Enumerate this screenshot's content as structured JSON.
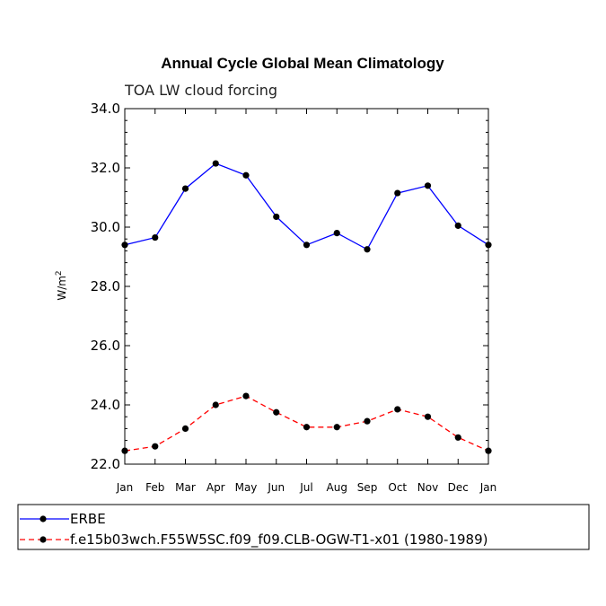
{
  "chart_data": {
    "type": "line",
    "title": "Annual Cycle Global Mean Climatology",
    "subtitle": "TOA LW cloud forcing",
    "xlabel": "",
    "ylabel": "W/m",
    "ylabel_superscript": "2",
    "ylim": [
      22.0,
      34.0
    ],
    "yticks": [
      "22.0",
      "24.0",
      "26.0",
      "28.0",
      "30.0",
      "32.0",
      "34.0"
    ],
    "categories": [
      "Jan",
      "Feb",
      "Mar",
      "Apr",
      "May",
      "Jun",
      "Jul",
      "Aug",
      "Sep",
      "Oct",
      "Nov",
      "Dec",
      "Jan"
    ],
    "series": [
      {
        "name": "ERBE",
        "color": "#0000ff",
        "dash": "solid",
        "values": [
          29.4,
          29.65,
          31.3,
          32.15,
          31.75,
          30.35,
          29.4,
          29.8,
          29.25,
          31.15,
          31.4,
          30.05,
          29.4
        ]
      },
      {
        "name": "f.e15b03wch.F55W5SC.f09_f09.CLB-OGW-T1-x01 (1980-1989)",
        "color": "#ff0000",
        "dash": "dashed",
        "values": [
          22.45,
          22.6,
          23.2,
          24.0,
          24.3,
          23.75,
          23.25,
          23.25,
          23.45,
          23.85,
          23.6,
          22.9,
          22.45
        ]
      }
    ],
    "legend_position": "bottom"
  }
}
